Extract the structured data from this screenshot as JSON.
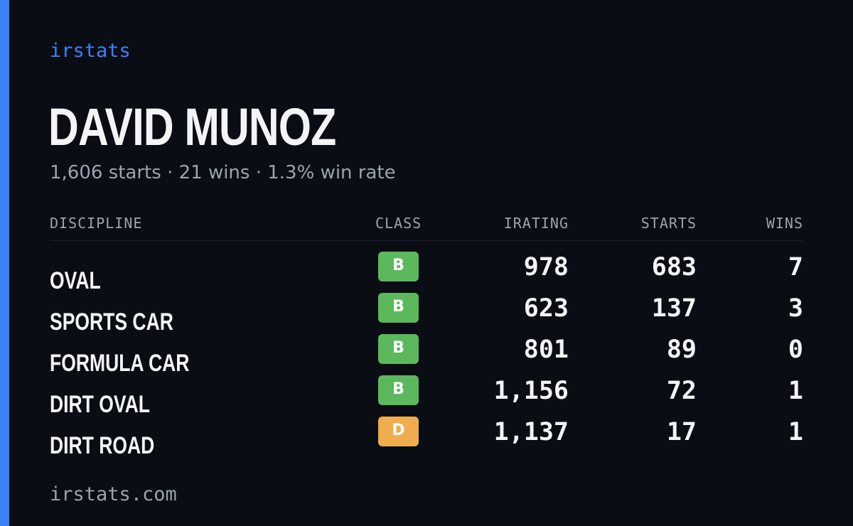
{
  "brand": "irstats",
  "driver": {
    "name": "DAVID MUNOZ",
    "summary": "1,606 starts · 21 wins · 1.3% win rate"
  },
  "table": {
    "headers": {
      "discipline": "DISCIPLINE",
      "class": "CLASS",
      "irating": "IRATING",
      "starts": "STARTS",
      "wins": "WINS"
    },
    "rows": [
      {
        "discipline": "OVAL",
        "class": "B",
        "class_color": "#5cb85c",
        "irating": "978",
        "starts": "683",
        "wins": "7"
      },
      {
        "discipline": "SPORTS CAR",
        "class": "B",
        "class_color": "#5cb85c",
        "irating": "623",
        "starts": "137",
        "wins": "3"
      },
      {
        "discipline": "FORMULA CAR",
        "class": "B",
        "class_color": "#5cb85c",
        "irating": "801",
        "starts": "89",
        "wins": "0"
      },
      {
        "discipline": "DIRT OVAL",
        "class": "B",
        "class_color": "#5cb85c",
        "irating": "1,156",
        "starts": "72",
        "wins": "1"
      },
      {
        "discipline": "DIRT ROAD",
        "class": "D",
        "class_color": "#f0ad4e",
        "irating": "1,137",
        "starts": "17",
        "wins": "1"
      }
    ]
  },
  "footer": "irstats.com",
  "colors": {
    "accent": "#3b82f6",
    "background": "#0b0d14",
    "class_b": "#5cb85c",
    "class_d": "#f0ad4e"
  }
}
